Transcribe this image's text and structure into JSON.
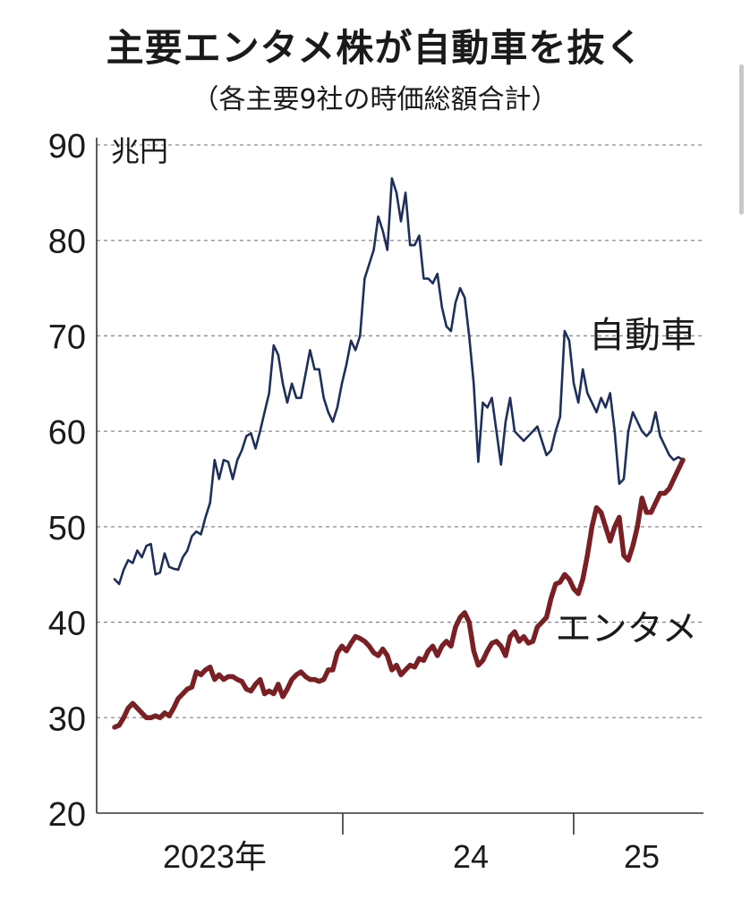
{
  "header": {
    "title": "主要エンタメ株が自動車を抜く",
    "subtitle": "（各主要9社の時価総額合計）"
  },
  "chart_data": {
    "type": "line",
    "title": "主要エンタメ株が自動車を抜く",
    "subtitle": "（各主要9社の時価総額合計）",
    "ylabel": "兆円",
    "ylim": [
      20,
      90
    ],
    "yticks": [
      "90",
      "80",
      "70",
      "60",
      "50",
      "40",
      "30",
      "20"
    ],
    "xtick_labels": [
      "2023年",
      "24",
      "25"
    ],
    "grid": "horizontal-dashed",
    "series": [
      {
        "name": "自動車",
        "color": "#1f2f5c",
        "x": [
          0,
          1,
          2,
          3,
          4,
          5,
          6,
          7,
          8,
          9,
          10,
          11,
          12,
          13,
          14,
          15,
          16,
          17,
          18,
          19,
          20,
          21,
          22,
          23,
          24,
          25,
          26,
          27,
          28,
          29,
          30,
          31,
          32,
          33,
          34,
          35,
          36,
          37,
          38,
          39,
          40,
          41,
          42,
          43,
          44,
          45,
          46,
          47,
          48,
          49,
          50,
          51,
          52,
          53,
          54,
          55,
          56,
          57,
          58,
          59,
          60,
          61,
          62,
          63,
          64,
          65,
          66,
          67,
          68,
          69,
          70,
          71,
          72,
          73,
          74,
          75,
          76,
          77,
          78,
          79,
          80,
          81,
          82,
          83,
          84,
          85,
          86,
          87,
          88,
          89,
          90,
          91,
          92,
          93,
          94,
          95,
          96,
          97,
          98,
          99,
          100,
          101,
          102,
          103,
          104,
          105,
          106,
          107,
          108,
          109,
          110,
          111,
          112,
          113,
          114,
          115,
          116,
          117,
          118,
          119,
          120,
          121,
          122,
          123,
          124,
          125
        ],
        "values": [
          44.5,
          44.0,
          45.5,
          46.5,
          46.2,
          47.5,
          46.8,
          48.0,
          48.2,
          45.0,
          45.2,
          47.2,
          45.8,
          45.6,
          45.5,
          46.8,
          47.5,
          49.0,
          49.5,
          49.2,
          51.0,
          52.5,
          57.0,
          55.0,
          57.0,
          56.8,
          55.0,
          57.0,
          58.0,
          59.5,
          59.8,
          58.2,
          60.0,
          62.0,
          64.0,
          69.0,
          68.0,
          65.0,
          63.0,
          65.0,
          63.5,
          63.5,
          66.0,
          68.5,
          66.5,
          66.5,
          63.5,
          62.0,
          61.0,
          62.5,
          65.0,
          67.0,
          69.5,
          68.5,
          70.0,
          76.0,
          77.5,
          79.0,
          82.5,
          81.0,
          79.0,
          86.5,
          85.0,
          82.0,
          85.0,
          79.5,
          79.5,
          80.5,
          76.0,
          76.0,
          75.5,
          76.5,
          73.0,
          71.0,
          70.5,
          73.5,
          75.0,
          74.0,
          70.0,
          65.0,
          56.8,
          63.0,
          62.5,
          63.5,
          60.0,
          56.5,
          61.0,
          63.5,
          60.0,
          59.5,
          59.0,
          59.5,
          60.0,
          60.5,
          59.0,
          57.5,
          58.0,
          60.0,
          61.5,
          70.5,
          69.5,
          65.0,
          63.0,
          66.5,
          64.0,
          63.0,
          62.0,
          63.5,
          62.5,
          64.0,
          60.0,
          54.5,
          55.0,
          60.0,
          62.0,
          61.0,
          60.0,
          59.5,
          60.0,
          62.0,
          59.5,
          58.5,
          57.5,
          57.0,
          57.3,
          57.0
        ]
      },
      {
        "name": "エンタメ",
        "color": "#7a1f24",
        "x": [
          0,
          1,
          2,
          3,
          4,
          5,
          6,
          7,
          8,
          9,
          10,
          11,
          12,
          13,
          14,
          15,
          16,
          17,
          18,
          19,
          20,
          21,
          22,
          23,
          24,
          25,
          26,
          27,
          28,
          29,
          30,
          31,
          32,
          33,
          34,
          35,
          36,
          37,
          38,
          39,
          40,
          41,
          42,
          43,
          44,
          45,
          46,
          47,
          48,
          49,
          50,
          51,
          52,
          53,
          54,
          55,
          56,
          57,
          58,
          59,
          60,
          61,
          62,
          63,
          64,
          65,
          66,
          67,
          68,
          69,
          70,
          71,
          72,
          73,
          74,
          75,
          76,
          77,
          78,
          79,
          80,
          81,
          82,
          83,
          84,
          85,
          86,
          87,
          88,
          89,
          90,
          91,
          92,
          93,
          94,
          95,
          96,
          97,
          98,
          99,
          100,
          101,
          102,
          103,
          104,
          105,
          106,
          107,
          108,
          109,
          110,
          111,
          112,
          113,
          114,
          115,
          116,
          117,
          118,
          119,
          120,
          121,
          122,
          123,
          124,
          125
        ],
        "values": [
          29.0,
          29.2,
          30.0,
          31.0,
          31.5,
          31.0,
          30.5,
          30.0,
          30.0,
          30.2,
          30.0,
          30.5,
          30.2,
          31.0,
          32.0,
          32.5,
          33.0,
          33.2,
          34.8,
          34.5,
          35.0,
          35.3,
          34.0,
          34.5,
          34.0,
          34.3,
          34.3,
          34.0,
          33.8,
          33.0,
          32.8,
          33.5,
          34.0,
          32.5,
          32.8,
          32.5,
          33.5,
          32.2,
          33.0,
          34.0,
          34.5,
          34.8,
          34.3,
          34.0,
          34.0,
          33.8,
          34.0,
          35.0,
          35.0,
          36.8,
          37.5,
          37.0,
          37.8,
          38.5,
          38.3,
          38.0,
          37.5,
          36.8,
          36.5,
          37.2,
          36.5,
          35.0,
          35.5,
          34.5,
          35.0,
          35.5,
          35.3,
          36.2,
          36.0,
          37.0,
          37.5,
          36.5,
          37.5,
          38.0,
          37.5,
          39.5,
          40.5,
          41.0,
          40.0,
          37.0,
          35.5,
          36.0,
          37.0,
          37.8,
          38.0,
          37.5,
          36.5,
          38.5,
          39.0,
          38.0,
          38.5,
          37.8,
          38.0,
          39.5,
          40.0,
          40.5,
          42.5,
          44.0,
          44.2,
          45.0,
          44.5,
          43.5,
          43.0,
          44.5,
          47.0,
          50.0,
          52.0,
          51.5,
          50.0,
          48.5,
          50.0,
          51.0,
          47.0,
          46.5,
          48.0,
          50.0,
          53.0,
          51.5,
          51.5,
          52.5,
          53.5,
          53.5,
          54.0,
          55.0,
          56.0,
          57.0
        ]
      }
    ]
  }
}
